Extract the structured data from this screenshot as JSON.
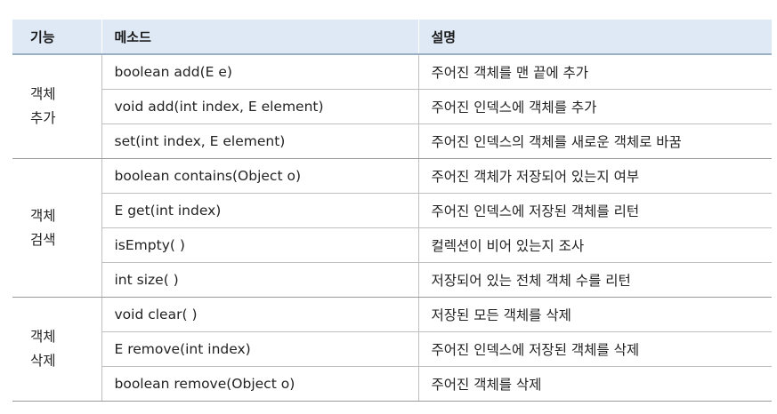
{
  "headers": {
    "feature": "기능",
    "method": "메소드",
    "description": "설명"
  },
  "groups": [
    {
      "feature": [
        "객체",
        "추가"
      ],
      "rows": [
        {
          "method": "boolean add(E e)",
          "description": "주어진 객체를 맨 끝에 추가"
        },
        {
          "method": "void add(int index, E element)",
          "description": "주어진 인덱스에 객체를 추가"
        },
        {
          "method": "set(int index, E element)",
          "description": "주어진 인덱스의 객체를 새로운 객체로 바꿈"
        }
      ]
    },
    {
      "feature": [
        "객체",
        "검색"
      ],
      "rows": [
        {
          "method": "boolean contains(Object o)",
          "description": "주어진 객체가 저장되어 있는지 여부"
        },
        {
          "method": "E get(int index)",
          "description": "주어진 인덱스에 저장된 객체를 리턴"
        },
        {
          "method": "isEmpty( )",
          "description": "컬렉션이 비어 있는지 조사"
        },
        {
          "method": "int size( )",
          "description": "저장되어 있는 전체 객체 수를 리턴"
        }
      ]
    },
    {
      "feature": [
        "객체",
        "삭제"
      ],
      "rows": [
        {
          "method": "void clear( )",
          "description": "저장된 모든 객체를 삭제"
        },
        {
          "method": "E remove(int index)",
          "description": "주어진 인덱스에 저장된 객체를 삭제"
        },
        {
          "method": "boolean remove(Object o)",
          "description": "주어진 객체를 삭제"
        }
      ]
    }
  ]
}
